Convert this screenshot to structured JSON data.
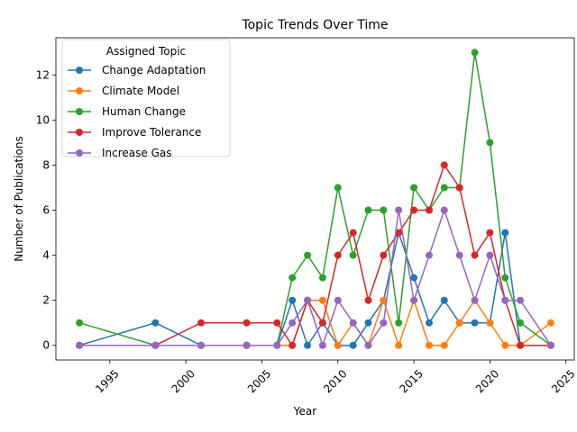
{
  "chart_data": {
    "type": "line",
    "title": "Topic Trends Over Time",
    "xlabel": "Year",
    "ylabel": "Number of Publications",
    "xlim": [
      1991.45,
      2025.55
    ],
    "ylim": [
      -0.65,
      13.65
    ],
    "xticks": [
      1995,
      2000,
      2005,
      2010,
      2015,
      2020,
      2025
    ],
    "yticks": [
      0,
      2,
      4,
      6,
      8,
      10,
      12
    ],
    "grid": false,
    "legend": {
      "title": "Assigned Topic",
      "placement": "top-left"
    },
    "series": [
      {
        "name": "Change Adaptation",
        "color": "#1f77b4",
        "x": [
          1993,
          1998,
          2001,
          2004,
          2006,
          2007,
          2008,
          2009,
          2010,
          2011,
          2012,
          2013,
          2014,
          2015,
          2016,
          2017,
          2018,
          2019,
          2020,
          2021,
          2022,
          2024
        ],
        "y": [
          0,
          1,
          0,
          0,
          0,
          2,
          0,
          1,
          0,
          0,
          1,
          2,
          5,
          3,
          1,
          2,
          1,
          1,
          1,
          5,
          0,
          0
        ]
      },
      {
        "name": "Climate Model",
        "color": "#ff7f0e",
        "x": [
          1993,
          1998,
          2001,
          2004,
          2006,
          2007,
          2008,
          2009,
          2010,
          2011,
          2012,
          2013,
          2014,
          2015,
          2016,
          2017,
          2018,
          2019,
          2020,
          2021,
          2022,
          2024
        ],
        "y": [
          0,
          0,
          0,
          0,
          0,
          0,
          2,
          2,
          0,
          1,
          0,
          2,
          0,
          2,
          0,
          0,
          1,
          2,
          1,
          0,
          0,
          1
        ]
      },
      {
        "name": "Human Change",
        "color": "#2ca02c",
        "x": [
          1993,
          1998,
          2001,
          2004,
          2006,
          2007,
          2008,
          2009,
          2010,
          2011,
          2012,
          2013,
          2014,
          2015,
          2016,
          2017,
          2018,
          2019,
          2020,
          2021,
          2022,
          2024
        ],
        "y": [
          1,
          0,
          0,
          0,
          0,
          3,
          4,
          3,
          7,
          4,
          6,
          6,
          1,
          7,
          6,
          7,
          7,
          13,
          9,
          3,
          1,
          0
        ]
      },
      {
        "name": "Improve Tolerance",
        "color": "#d62728",
        "x": [
          1993,
          1998,
          2001,
          2004,
          2006,
          2007,
          2008,
          2009,
          2010,
          2011,
          2012,
          2013,
          2014,
          2015,
          2016,
          2017,
          2018,
          2019,
          2020,
          2021,
          2022,
          2024
        ],
        "y": [
          0,
          0,
          1,
          1,
          1,
          0,
          2,
          1,
          4,
          5,
          2,
          4,
          5,
          6,
          6,
          8,
          7,
          4,
          5,
          2,
          0,
          0
        ]
      },
      {
        "name": "Increase Gas",
        "color": "#9467bd",
        "x": [
          1993,
          1998,
          2001,
          2004,
          2006,
          2007,
          2008,
          2009,
          2010,
          2011,
          2012,
          2013,
          2014,
          2015,
          2016,
          2017,
          2018,
          2019,
          2020,
          2021,
          2022,
          2024
        ],
        "y": [
          0,
          0,
          0,
          0,
          0,
          1,
          2,
          0,
          2,
          1,
          0,
          1,
          6,
          2,
          4,
          6,
          4,
          2,
          4,
          2,
          2,
          0
        ]
      }
    ]
  }
}
